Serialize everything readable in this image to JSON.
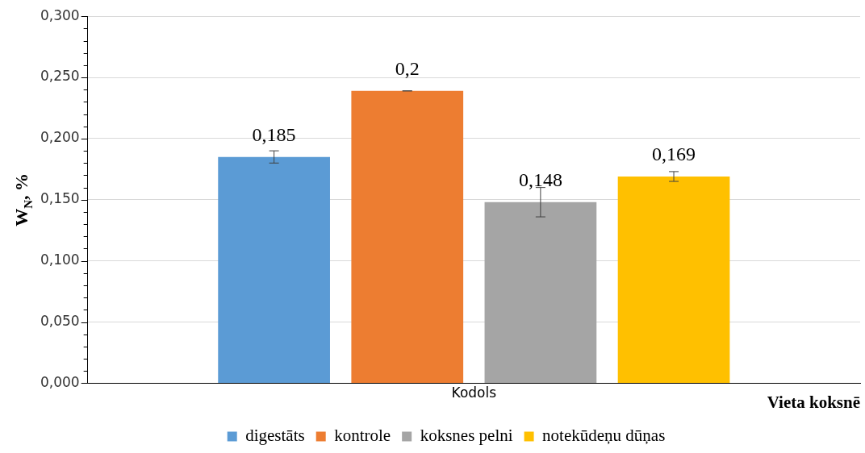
{
  "chart_data": {
    "type": "bar",
    "xlabel": "Vieta koksnē",
    "ylabel": "W$_{N}$, %",
    "categories": [
      "Kodols"
    ],
    "series": [
      {
        "name": "digestāts",
        "color": "#5b9bd5",
        "values": [
          0.185
        ],
        "errors": [
          0.005
        ],
        "value_labels": [
          "0,185"
        ]
      },
      {
        "name": "kontrole",
        "color": "#ed7d31",
        "values": [
          0.239
        ],
        "errors": [
          0
        ],
        "value_labels": [
          "0,2"
        ]
      },
      {
        "name": "koksnes pelni",
        "color": "#a5a5a5",
        "values": [
          0.148
        ],
        "errors": [
          0.012
        ],
        "value_labels": [
          "0,148"
        ]
      },
      {
        "name": "notekūdeņu dūņas",
        "color": "#ffc000",
        "values": [
          0.169
        ],
        "errors": [
          0.004
        ],
        "value_labels": [
          "0,169"
        ]
      }
    ],
    "ylim": [
      0,
      0.3
    ],
    "yticks": [
      {
        "value": 0,
        "label": "0,000"
      },
      {
        "value": 0.01,
        "label": null
      },
      {
        "value": 0.02,
        "label": null
      },
      {
        "value": 0.03,
        "label": null
      },
      {
        "value": 0.04,
        "label": null
      },
      {
        "value": 0.05,
        "label": "0,050"
      },
      {
        "value": 0.06,
        "label": null
      },
      {
        "value": 0.07,
        "label": null
      },
      {
        "value": 0.08,
        "label": null
      },
      {
        "value": 0.09,
        "label": null
      },
      {
        "value": 0.1,
        "label": "0,100"
      },
      {
        "value": 0.11,
        "label": null
      },
      {
        "value": 0.12,
        "label": null
      },
      {
        "value": 0.13,
        "label": null
      },
      {
        "value": 0.14,
        "label": null
      },
      {
        "value": 0.15,
        "label": "0,150"
      },
      {
        "value": 0.16,
        "label": null
      },
      {
        "value": 0.17,
        "label": null
      },
      {
        "value": 0.18,
        "label": null
      },
      {
        "value": 0.19,
        "label": null
      },
      {
        "value": 0.2,
        "label": "0,200"
      },
      {
        "value": 0.21,
        "label": null
      },
      {
        "value": 0.22,
        "label": null
      },
      {
        "value": 0.23,
        "label": null
      },
      {
        "value": 0.24,
        "label": null
      },
      {
        "value": 0.25,
        "label": "0,250"
      },
      {
        "value": 0.26,
        "label": null
      },
      {
        "value": 0.27,
        "label": null
      },
      {
        "value": 0.28,
        "label": null
      },
      {
        "value": 0.29,
        "label": null
      },
      {
        "value": 0.3,
        "label": "0,300"
      }
    ],
    "grid": "y",
    "legend": "bottom"
  }
}
